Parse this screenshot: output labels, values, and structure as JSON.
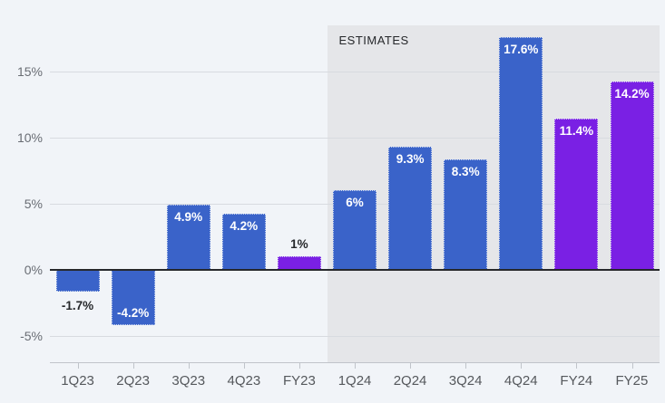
{
  "chart_data": {
    "type": "bar",
    "title": "",
    "categories": [
      "1Q23",
      "2Q23",
      "3Q23",
      "4Q23",
      "FY23",
      "1Q24",
      "2Q24",
      "3Q24",
      "4Q24",
      "FY24",
      "FY25"
    ],
    "values": [
      -1.7,
      -4.2,
      4.9,
      4.2,
      1,
      6,
      9.3,
      8.3,
      17.6,
      11.4,
      14.2
    ],
    "value_labels": [
      "-1.7%",
      "-4.2%",
      "4.9%",
      "4.2%",
      "1%",
      "6%",
      "9.3%",
      "8.3%",
      "17.6%",
      "11.4%",
      "14.2%"
    ],
    "bar_colors": [
      "blue",
      "blue",
      "blue",
      "blue",
      "purple",
      "blue",
      "blue",
      "blue",
      "blue",
      "purple",
      "purple"
    ],
    "label_placement": [
      "out-bottom",
      "in-bottom",
      "in-top",
      "in-top",
      "out-top",
      "in-top",
      "in-top",
      "in-top",
      "in-top",
      "in-top",
      "in-top"
    ],
    "colors": {
      "blue": "#3a63c9",
      "purple": "#7a20e4"
    },
    "y_ticks": [
      {
        "v": 15,
        "label": "15%"
      },
      {
        "v": 10,
        "label": "10%"
      },
      {
        "v": 5,
        "label": "5%"
      },
      {
        "v": 0,
        "label": "0%"
      },
      {
        "v": -5,
        "label": "-5%"
      }
    ],
    "ylim": [
      -7,
      19
    ],
    "xlabel": "",
    "ylabel": "",
    "grid": true,
    "estimates": {
      "label": "ESTIMATES",
      "start_category": "1Q24"
    }
  }
}
